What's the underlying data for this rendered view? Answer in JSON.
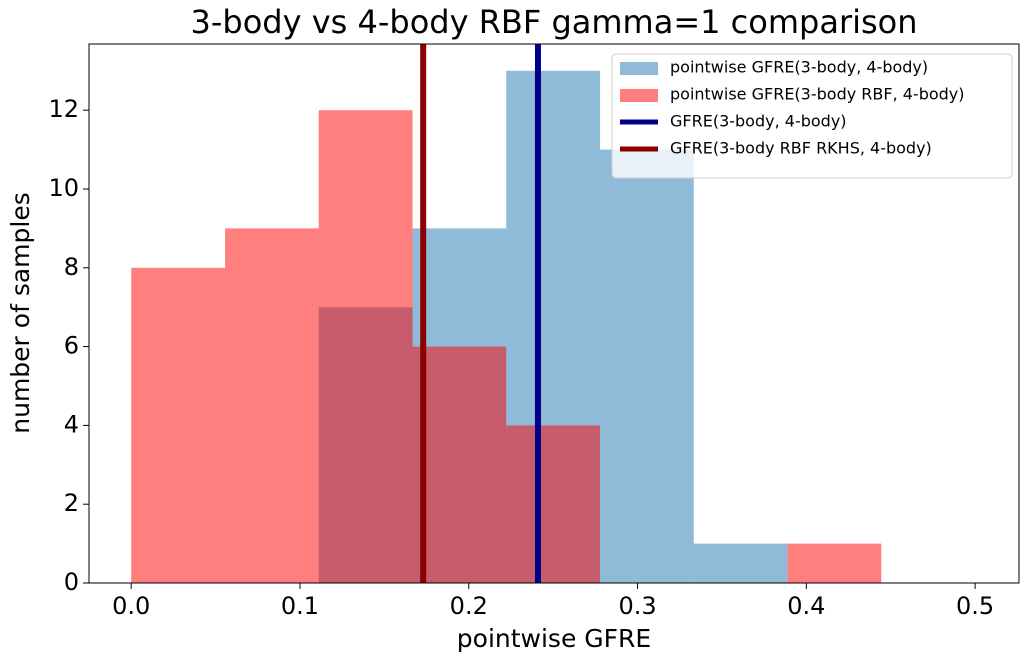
{
  "chart_data": {
    "type": "histogram",
    "title": "3-body vs 4-body RBF gamma=1 comparison",
    "x_label": "pointwise GFRE",
    "y_label": "number of samples",
    "bins": [
      0,
      0.0556,
      0.1111,
      0.1667,
      0.2222,
      0.2778,
      0.3333,
      0.3889,
      0.4444,
      0.5
    ],
    "alpha": 0.5,
    "series": [
      {
        "name": "pointwise GFRE(3-body, 4-body)",
        "color": "#1f77b4",
        "values": [
          0,
          0,
          7,
          9,
          13,
          11,
          1,
          0,
          0
        ]
      },
      {
        "name": "pointwise GFRE(3-body RBF, 4-body)",
        "color": "#ff0000",
        "values": [
          8,
          9,
          12,
          6,
          4,
          0,
          0,
          1,
          0
        ]
      }
    ],
    "vlines": [
      {
        "name": "GFRE(3-body, 4-body)",
        "color": "#00008b",
        "x": 0.241
      },
      {
        "name": "GFRE(3-body RBF RKHS, 4-body)",
        "color": "#8b0000",
        "x": 0.173
      }
    ],
    "xlim": [
      -0.025,
      0.526
    ],
    "ylim": [
      0,
      13.68
    ],
    "xticks": [
      {
        "value": 0,
        "label": "0.0"
      },
      {
        "value": 0.1,
        "label": "0.1"
      },
      {
        "value": 0.2,
        "label": "0.2"
      },
      {
        "value": 0.3,
        "label": "0.3"
      },
      {
        "value": 0.4,
        "label": "0.4"
      },
      {
        "value": 0.5,
        "label": "0.5"
      }
    ],
    "yticks": [
      0,
      2,
      4,
      6,
      8,
      10,
      12
    ],
    "grid": false,
    "legend": "upper right"
  }
}
